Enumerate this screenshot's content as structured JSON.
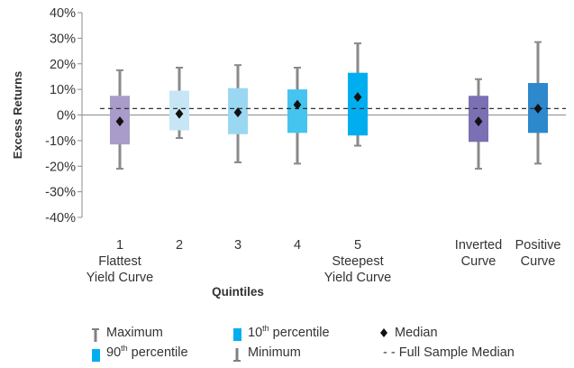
{
  "chart_data": {
    "type": "box",
    "ylabel": "Excess Returns",
    "xlabel": "Quintiles",
    "ylim": [
      -40,
      40
    ],
    "yticks": [
      -40,
      -30,
      -20,
      -10,
      0,
      10,
      20,
      30,
      40
    ],
    "ytick_labels": [
      "-40%",
      "-30%",
      "-20%",
      "-10%",
      "0%",
      "10%",
      "20%",
      "30%",
      "40%"
    ],
    "full_sample_median": 2.5,
    "categories": [
      {
        "label": [
          "1",
          "Flattest",
          "Yield Curve"
        ],
        "max": 17.5,
        "p90": 7.5,
        "median": -2.5,
        "p10": -11.5,
        "min": -21,
        "color": "#a99ccb"
      },
      {
        "label": [
          "2"
        ],
        "max": 18.5,
        "p90": 9.5,
        "median": 0.5,
        "p10": -6,
        "min": -9,
        "color": "#c6e6f5"
      },
      {
        "label": [
          "3"
        ],
        "max": 19.5,
        "p90": 10.5,
        "median": 1,
        "p10": -7.5,
        "min": -18.5,
        "color": "#9ad8f2"
      },
      {
        "label": [
          "4"
        ],
        "max": 18.5,
        "p90": 10,
        "median": 4,
        "p10": -7,
        "min": -19,
        "color": "#45c4ef"
      },
      {
        "label": [
          "5",
          "Steepest",
          "Yield Curve"
        ],
        "max": 28,
        "p90": 16.5,
        "median": 7,
        "p10": -8,
        "min": -12,
        "color": "#00aeef"
      },
      {
        "label": [
          "Inverted",
          "Curve"
        ],
        "max": 14,
        "p90": 7.5,
        "median": -2.5,
        "p10": -10.5,
        "min": -21,
        "color": "#7b70b3"
      },
      {
        "label": [
          "Positive",
          "Curve"
        ],
        "max": 28.5,
        "p90": 12.5,
        "median": 2.5,
        "p10": -7,
        "min": -19,
        "color": "#2d88cc"
      }
    ]
  },
  "legend": [
    {
      "text": "Maximum",
      "sup": "",
      "suffix": "",
      "icon": "whisker-top",
      "color": "#808080"
    },
    {
      "text": "10",
      "sup": "th",
      "suffix": " percentile",
      "icon": "box-bottom",
      "color": "#00aeef"
    },
    {
      "text": "Median",
      "sup": "",
      "suffix": "",
      "icon": "diamond",
      "color": "#111111"
    },
    {
      "text": "90",
      "sup": "th",
      "suffix": " percentile",
      "icon": "box-top",
      "color": "#00aeef"
    },
    {
      "text": "Minimum",
      "sup": "",
      "suffix": "",
      "icon": "whisker-bottom",
      "color": "#808080"
    },
    {
      "text": "- - Full Sample Median",
      "sup": "",
      "suffix": "",
      "icon": "none",
      "color": "#333333"
    }
  ]
}
